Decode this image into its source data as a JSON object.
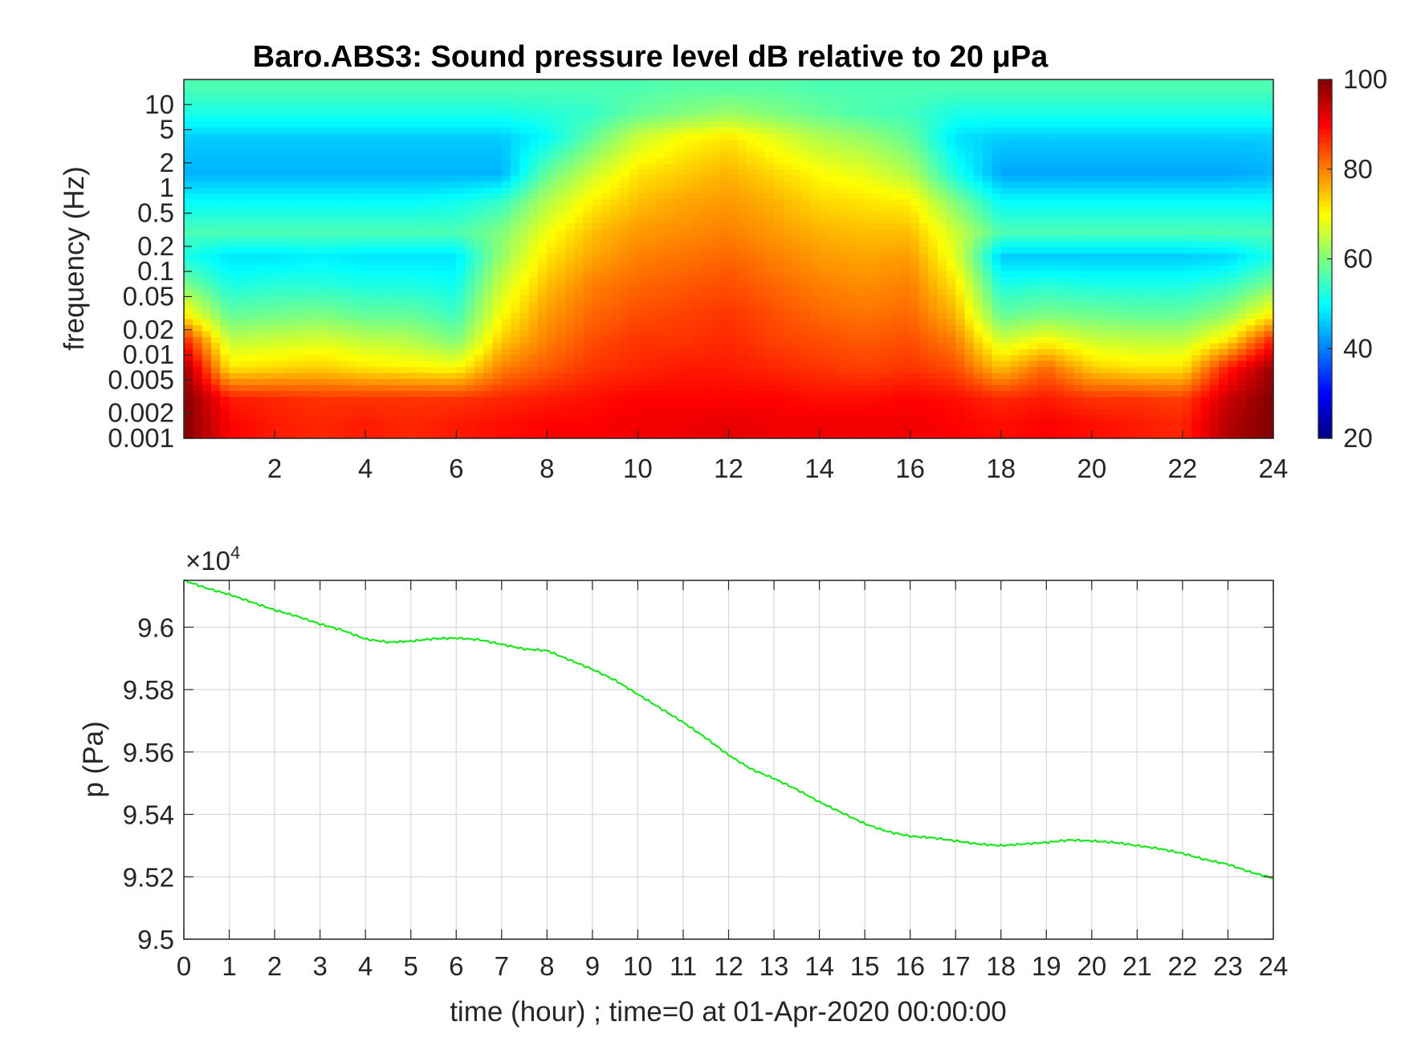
{
  "chart_data": [
    {
      "type": "heatmap",
      "title": "Baro.ABS3: Sound pressure level dB relative to 20 μPa",
      "xlabel": "",
      "ylabel": "frequency (Hz)",
      "y_scale": "log",
      "xlim": [
        0,
        24
      ],
      "ylim": [
        0.001,
        20
      ],
      "x_ticks": [
        "2",
        "4",
        "6",
        "8",
        "10",
        "12",
        "14",
        "16",
        "18",
        "20",
        "22",
        "24"
      ],
      "y_ticks": [
        "0.001",
        "0.002",
        "0.005",
        "0.01",
        "0.02",
        "0.05",
        "0.1",
        "0.2",
        "0.5",
        "1",
        "2",
        "5",
        "10"
      ],
      "colormap": "jet",
      "colorbar": {
        "range": [
          20,
          100
        ],
        "ticks": [
          "20",
          "40",
          "60",
          "80",
          "100"
        ]
      },
      "levels_db": {
        "hours": [
          0,
          1,
          2,
          3,
          4,
          5,
          6,
          7,
          8,
          9,
          10,
          11,
          12,
          13,
          14,
          15,
          16,
          17,
          18,
          19,
          20,
          21,
          22,
          23,
          24
        ],
        "freq_bands_hz": [
          0.0015,
          0.003,
          0.007,
          0.015,
          0.03,
          0.07,
          0.15,
          0.3,
          0.7,
          1.5,
          4,
          8,
          16
        ],
        "matrix": [
          [
            100,
            90,
            88,
            87,
            88,
            87,
            88,
            89,
            90,
            90,
            91,
            91,
            92,
            91,
            91,
            91,
            91,
            90,
            89,
            90,
            89,
            88,
            87,
            96,
            100
          ],
          [
            100,
            88,
            87,
            86,
            86,
            86,
            86,
            87,
            88,
            89,
            90,
            90,
            90,
            90,
            89,
            89,
            90,
            89,
            87,
            88,
            86,
            86,
            85,
            94,
            100
          ],
          [
            98,
            72,
            73,
            74,
            72,
            71,
            70,
            80,
            83,
            86,
            87,
            88,
            88,
            87,
            86,
            85,
            86,
            84,
            75,
            82,
            74,
            72,
            72,
            88,
            98
          ],
          [
            88,
            65,
            66,
            67,
            65,
            64,
            60,
            74,
            80,
            84,
            86,
            86,
            87,
            85,
            84,
            83,
            84,
            80,
            66,
            70,
            66,
            65,
            65,
            72,
            88
          ],
          [
            72,
            58,
            59,
            60,
            58,
            58,
            55,
            70,
            78,
            82,
            84,
            85,
            86,
            84,
            82,
            81,
            82,
            76,
            58,
            60,
            59,
            58,
            58,
            62,
            72
          ],
          [
            60,
            52,
            53,
            53,
            52,
            52,
            51,
            66,
            75,
            80,
            82,
            83,
            84,
            82,
            80,
            79,
            80,
            72,
            52,
            53,
            52,
            52,
            52,
            54,
            60
          ],
          [
            52,
            48,
            48,
            49,
            48,
            48,
            48,
            62,
            72,
            77,
            80,
            81,
            82,
            80,
            78,
            77,
            78,
            68,
            46,
            46,
            46,
            46,
            46,
            47,
            52
          ],
          [
            56,
            56,
            56,
            56,
            56,
            56,
            56,
            60,
            69,
            75,
            78,
            79,
            80,
            78,
            76,
            75,
            75,
            66,
            56,
            56,
            56,
            56,
            56,
            56,
            56
          ],
          [
            50,
            50,
            50,
            50,
            50,
            50,
            51,
            54,
            64,
            71,
            75,
            77,
            78,
            76,
            73,
            72,
            71,
            60,
            50,
            50,
            50,
            50,
            50,
            50,
            50
          ],
          [
            44,
            44,
            44,
            44,
            44,
            44,
            44,
            44,
            58,
            66,
            72,
            74,
            76,
            73,
            70,
            68,
            64,
            52,
            43,
            43,
            43,
            43,
            43,
            43,
            44
          ],
          [
            46,
            46,
            46,
            46,
            46,
            46,
            46,
            46,
            50,
            58,
            66,
            70,
            72,
            68,
            64,
            62,
            58,
            48,
            46,
            46,
            46,
            46,
            46,
            46,
            46
          ],
          [
            52,
            52,
            52,
            52,
            52,
            52,
            52,
            52,
            53,
            54,
            58,
            60,
            62,
            60,
            58,
            56,
            55,
            52,
            52,
            52,
            52,
            52,
            52,
            52,
            52
          ],
          [
            56,
            56,
            56,
            56,
            56,
            56,
            56,
            56,
            56,
            56,
            56,
            57,
            57,
            57,
            56,
            56,
            56,
            56,
            56,
            56,
            56,
            56,
            56,
            56,
            56
          ]
        ]
      }
    },
    {
      "type": "line",
      "title": "",
      "xlabel": "time (hour) ; time=0 at 01-Apr-2020 00:00:00",
      "ylabel": "p (Pa)",
      "exponent_label": "×10",
      "exponent_power": "4",
      "xlim": [
        0,
        24
      ],
      "ylim": [
        9.5,
        9.615
      ],
      "grid": true,
      "x_ticks": [
        "0",
        "1",
        "2",
        "3",
        "4",
        "5",
        "6",
        "7",
        "8",
        "9",
        "10",
        "11",
        "12",
        "13",
        "14",
        "15",
        "16",
        "17",
        "18",
        "19",
        "20",
        "21",
        "22",
        "23",
        "24"
      ],
      "y_ticks": [
        "9.5",
        "9.52",
        "9.54",
        "9.56",
        "9.58",
        "9.6"
      ],
      "series": [
        {
          "color": "#1ee61e",
          "x": [
            0,
            0.5,
            1,
            1.5,
            2,
            2.5,
            3,
            3.5,
            4,
            4.5,
            5,
            5.5,
            6,
            6.5,
            7,
            7.5,
            8,
            8.5,
            9,
            9.5,
            10,
            10.5,
            11,
            11.5,
            12,
            12.5,
            13,
            13.5,
            14,
            14.5,
            15,
            15.5,
            16,
            16.5,
            17,
            17.5,
            18,
            18.5,
            19,
            19.5,
            20,
            20.5,
            21,
            21.5,
            22,
            22.5,
            23,
            23.5,
            24
          ],
          "y": [
            9.615,
            9.6125,
            9.6105,
            9.608,
            9.6055,
            9.6035,
            9.601,
            9.599,
            9.5962,
            9.5952,
            9.5955,
            9.5963,
            9.5965,
            9.596,
            9.5945,
            9.593,
            9.5925,
            9.5895,
            9.5865,
            9.583,
            9.5785,
            9.574,
            9.5695,
            9.5645,
            9.559,
            9.5545,
            9.5515,
            9.548,
            9.544,
            9.5405,
            9.537,
            9.5345,
            9.533,
            9.5325,
            9.5315,
            9.5305,
            9.53,
            9.5305,
            9.531,
            9.5318,
            9.5315,
            9.531,
            9.53,
            9.529,
            9.5275,
            9.5255,
            9.524,
            9.5215,
            9.5195
          ]
        }
      ]
    }
  ]
}
